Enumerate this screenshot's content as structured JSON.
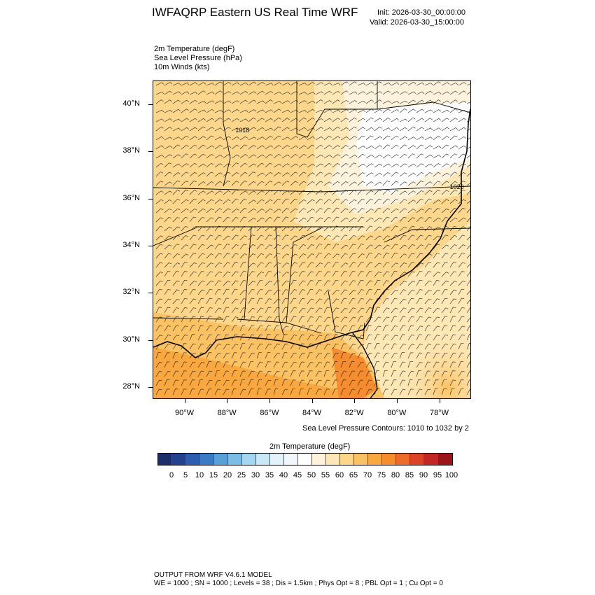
{
  "header": {
    "title": "IWFAQRP Eastern US Real Time WRF",
    "init": "Init: 2026-03-30_00:00:00",
    "valid": "Valid: 2026-03-30_15:00:00"
  },
  "fields": [
    "2m Temperature   (degF)",
    "Sea Level Pressure   (hPa)",
    "10m Winds   (kts)"
  ],
  "map": {
    "lon_range": [
      -91.5,
      -76.5
    ],
    "lat_range": [
      27.5,
      41.0
    ],
    "lat_ticks": [
      "40°N",
      "38°N",
      "36°N",
      "34°N",
      "32°N",
      "30°N",
      "28°N"
    ],
    "lat_values": [
      40,
      38,
      36,
      34,
      32,
      30,
      28
    ],
    "lon_ticks": [
      "90°W",
      "88°W",
      "86°W",
      "84°W",
      "82°W",
      "80°W",
      "78°W"
    ],
    "lon_values": [
      -90,
      -88,
      -86,
      -84,
      -82,
      -80,
      -78
    ],
    "isobar_labels": [
      {
        "text": "1018",
        "lon": -87.6,
        "lat": 38.8
      },
      {
        "text": "1020",
        "lon": -77.5,
        "lat": 36.4
      }
    ],
    "slp_note": "Sea Level Pressure Contours: 1010 to 1032 by 2"
  },
  "colorbar": {
    "title": "2m Temperature  (degF)",
    "ticks": [
      "0",
      "5",
      "10",
      "15",
      "20",
      "25",
      "30",
      "35",
      "40",
      "45",
      "50",
      "55",
      "60",
      "65",
      "70",
      "75",
      "80",
      "85",
      "90",
      "95",
      "100"
    ],
    "colors": [
      "#1b2e6b",
      "#23418f",
      "#2d5db0",
      "#3b7bc6",
      "#5aa0d8",
      "#7cbde6",
      "#a3d6f1",
      "#c7e8f7",
      "#e2f3fb",
      "#f1f8fc",
      "#ffffff",
      "#fdf3dc",
      "#fde7b5",
      "#fcd68a",
      "#fbc264",
      "#f9a83f",
      "#f58c2e",
      "#ee6a2a",
      "#dd4327",
      "#c22724",
      "#9b1419"
    ]
  },
  "footer": {
    "line1": "OUTPUT FROM WRF V4.6.1 MODEL",
    "line2": "WE = 1000 ; SN = 1000 ; Levels = 38 ; Dis = 1.5km ; Phys Opt = 8 ; PBL Opt = 1 ; Cu Opt = 0"
  }
}
